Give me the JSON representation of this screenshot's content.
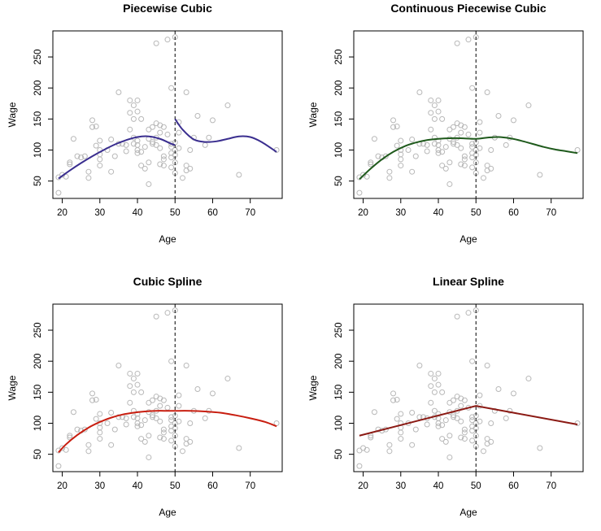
{
  "chart_data": [
    {
      "type": "scatter",
      "title": "Piecewise Cubic",
      "xlabel": "Age",
      "ylabel": "Wage",
      "xlim": [
        17.5,
        78.5
      ],
      "ylim": [
        22,
        292
      ],
      "xticks": [
        20,
        30,
        40,
        50,
        60,
        70
      ],
      "yticks": [
        50,
        100,
        150,
        200,
        250
      ],
      "knot": 50,
      "fit_color": "#3a2e8f",
      "fit_break_at_knot": true,
      "fit": {
        "x": [
          19,
          22,
          25,
          28,
          31,
          34,
          37,
          40,
          43,
          46,
          49,
          50,
          50,
          52,
          55,
          58,
          61,
          64,
          67,
          70,
          73,
          77
        ],
        "y": [
          54,
          67,
          79,
          90,
          100,
          109,
          116,
          121,
          122,
          118,
          110,
          108,
          150,
          133,
          117,
          113,
          114,
          118,
          122,
          121,
          113,
          97
        ]
      }
    },
    {
      "type": "scatter",
      "title": "Continuous Piecewise Cubic",
      "xlabel": "Age",
      "ylabel": "Wage",
      "xlim": [
        17.5,
        78.5
      ],
      "ylim": [
        22,
        292
      ],
      "xticks": [
        20,
        30,
        40,
        50,
        60,
        70
      ],
      "yticks": [
        50,
        100,
        150,
        200,
        250
      ],
      "knot": 50,
      "fit_color": "#1f5a1c",
      "fit_break_at_knot": false,
      "fit": {
        "x": [
          19,
          22,
          25,
          28,
          31,
          34,
          37,
          40,
          43,
          46,
          50,
          53,
          56,
          59,
          62,
          65,
          68,
          71,
          74,
          77
        ],
        "y": [
          53,
          70,
          85,
          97,
          106,
          112,
          116,
          118,
          119,
          119,
          118,
          120,
          121,
          119,
          115,
          110,
          105,
          101,
          98,
          95
        ]
      }
    },
    {
      "type": "scatter",
      "title": "Cubic Spline",
      "xlabel": "Age",
      "ylabel": "Wage",
      "xlim": [
        17.5,
        78.5
      ],
      "ylim": [
        22,
        292
      ],
      "xticks": [
        20,
        30,
        40,
        50,
        60,
        70
      ],
      "yticks": [
        50,
        100,
        150,
        200,
        250
      ],
      "knot": 50,
      "fit_color": "#c81e10",
      "fit_break_at_knot": false,
      "fit": {
        "x": [
          19,
          21,
          24,
          27,
          30,
          33,
          36,
          39,
          42,
          45,
          48,
          50,
          54,
          58,
          62,
          66,
          70,
          74,
          77
        ],
        "y": [
          53,
          66,
          81,
          93,
          102,
          109,
          114,
          117,
          119,
          120,
          120,
          120,
          120,
          119,
          117,
          113,
          108,
          102,
          95
        ]
      }
    },
    {
      "type": "scatter",
      "title": "Linear Spline",
      "xlabel": "Age",
      "ylabel": "Wage",
      "xlim": [
        17.5,
        78.5
      ],
      "ylim": [
        22,
        292
      ],
      "xticks": [
        20,
        30,
        40,
        50,
        60,
        70
      ],
      "yticks": [
        50,
        100,
        150,
        200,
        250
      ],
      "knot": 50,
      "fit_color": "#8b1a14",
      "fit_break_at_knot": false,
      "fit": {
        "x": [
          19,
          50,
          77
        ],
        "y": [
          80,
          128,
          98
        ]
      }
    }
  ],
  "points": {
    "x": [
      19,
      19,
      20,
      21,
      22,
      22,
      23,
      24,
      25,
      26,
      27,
      27,
      28,
      28,
      29,
      29,
      30,
      30,
      30,
      30,
      30,
      32,
      33,
      33,
      34,
      35,
      35,
      36,
      37,
      37,
      38,
      38,
      38,
      39,
      39,
      39,
      39,
      40,
      40,
      40,
      40,
      40,
      40,
      41,
      41,
      41,
      42,
      42,
      43,
      43,
      43,
      43,
      44,
      44,
      44,
      45,
      45,
      45,
      45,
      46,
      46,
      46,
      46,
      47,
      47,
      47,
      47,
      48,
      48,
      49,
      49,
      49,
      49,
      49,
      49,
      50,
      50,
      50,
      50,
      50,
      50,
      51,
      51,
      51,
      52,
      53,
      53,
      53,
      54,
      54,
      55,
      56,
      58,
      59,
      60,
      64,
      67,
      77
    ],
    "y": [
      31,
      56,
      60,
      57,
      80,
      77,
      118,
      90,
      88,
      90,
      65,
      55,
      148,
      137,
      107,
      138,
      100,
      115,
      85,
      75,
      93,
      100,
      65,
      117,
      90,
      193,
      110,
      110,
      98,
      108,
      180,
      160,
      133,
      172,
      110,
      150,
      120,
      180,
      162,
      115,
      108,
      95,
      100,
      150,
      97,
      75,
      105,
      70,
      133,
      118,
      80,
      45,
      137,
      110,
      113,
      272,
      143,
      108,
      120,
      140,
      128,
      103,
      77,
      90,
      137,
      85,
      75,
      125,
      278,
      200,
      110,
      105,
      95,
      72,
      88,
      282,
      112,
      100,
      92,
      80,
      63,
      145,
      128,
      103,
      55,
      193,
      67,
      75,
      100,
      70,
      120,
      155,
      108,
      120,
      148,
      172,
      60,
      100
    ]
  }
}
